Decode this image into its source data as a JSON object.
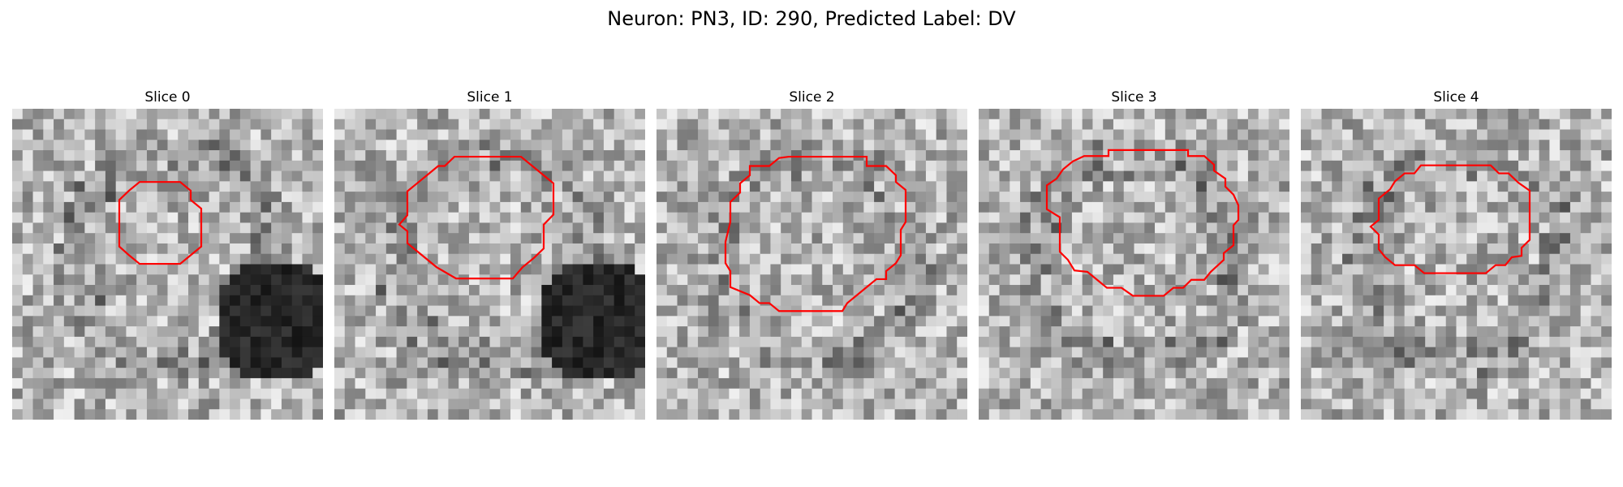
{
  "figure": {
    "title": "Neuron: PN3, ID: 290, Predicted Label: DV"
  },
  "panels": [
    {
      "title": "Slice 0",
      "seed": 11,
      "dark_blob": true
    },
    {
      "title": "Slice 1",
      "seed": 23,
      "dark_blob": true
    },
    {
      "title": "Slice 2",
      "seed": 37,
      "dark_blob": false
    },
    {
      "title": "Slice 3",
      "seed": 51,
      "dark_blob": false
    },
    {
      "title": "Slice 4",
      "seed": 67,
      "dark_blob": false
    }
  ],
  "contour_color": "#ff0000",
  "image_colormap": "grayscale"
}
